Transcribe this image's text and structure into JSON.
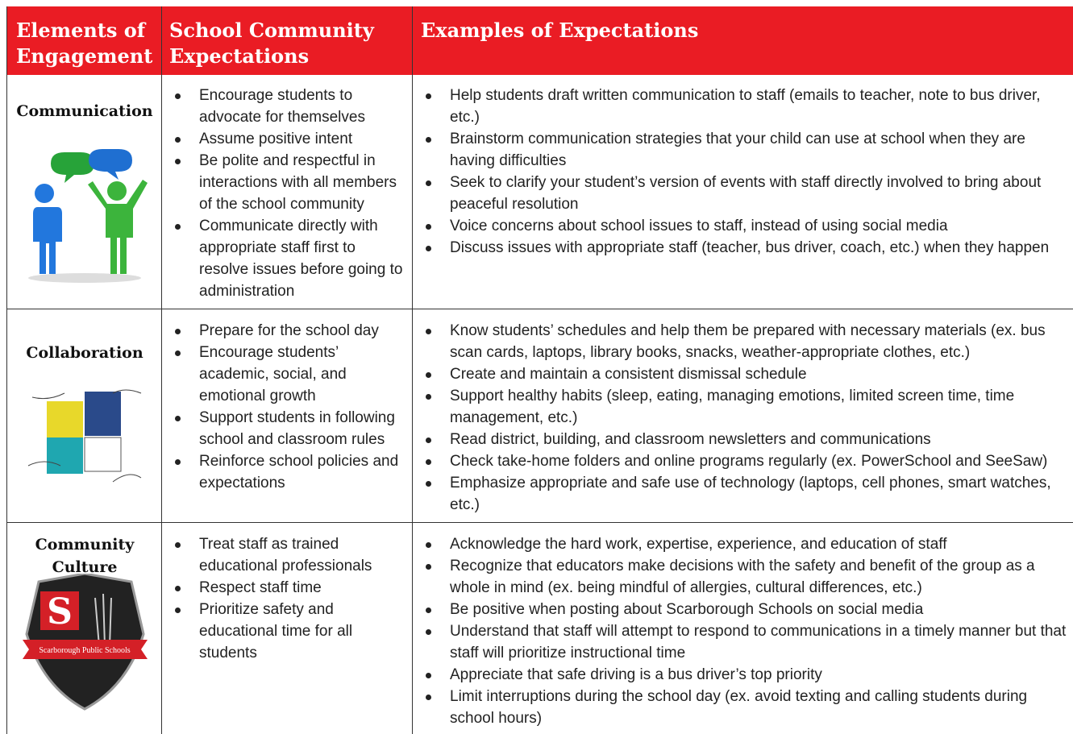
{
  "header": [
    "Elements of Engagement",
    "School Community Expectations",
    "Examples of Expectations"
  ],
  "rows": [
    {
      "element": "Communication",
      "expectations": [
        "Encourage students to advocate for themselves",
        "Assume positive intent",
        "Be polite and respectful in interactions with all members of the school community",
        "Communicate directly with appropriate staff first to resolve issues before going to administration"
      ],
      "examples": [
        "Help students draft written communication to staff (emails to teacher, note to bus driver, etc.)",
        "Brainstorm communication strategies that your child can use at school when they are having difficulties",
        "Seek to clarify your student’s version of events with staff directly involved to bring about peaceful resolution",
        "Voice concerns about school issues to staff, instead of using social media",
        "Discuss issues with appropriate staff  (teacher, bus driver, coach, etc.) when they happen"
      ]
    },
    {
      "element": "Collaboration",
      "expectations": [
        "Prepare for the school day",
        "Encourage students’ academic, social, and emotional growth",
        "Support students in following school and classroom rules",
        "Reinforce school policies and expectations"
      ],
      "examples": [
        "Know students’ schedules and help them be prepared with necessary materials (ex. bus scan cards, laptops, library books, snacks, weather-appropriate clothes, etc.)",
        "Create and maintain a consistent dismissal schedule",
        "Support healthy habits (sleep, eating, managing emotions, limited screen time, time management, etc.)",
        "Read district, building, and classroom newsletters and communications",
        "Check take-home folders and online programs regularly (ex. PowerSchool and SeeSaw)",
        "Emphasize appropriate and safe use of technology (laptops, cell phones, smart watches, etc.)"
      ]
    },
    {
      "element": "Community Culture",
      "expectations": [
        "Treat staff as trained educational professionals",
        "Respect staff time",
        "Prioritize safety and educational time for all students"
      ],
      "examples": [
        "Acknowledge the hard work, expertise, experience, and education of staff",
        "Recognize that educators make decisions with the safety and benefit of the group as a whole in mind (ex. being mindful of allergies, cultural differences, etc.)",
        "Be positive when posting about Scarborough Schools on social media",
        "Understand that staff will attempt to respond to communications in a timely manner but that staff will prioritize instructional time",
        "Appreciate that safe driving is a bus driver’s top priority",
        "Limit interruptions during the school day (ex. avoid texting and calling students during school hours)"
      ]
    }
  ],
  "badge": {
    "letter": "S",
    "text": "Scarborough Public Schools"
  }
}
